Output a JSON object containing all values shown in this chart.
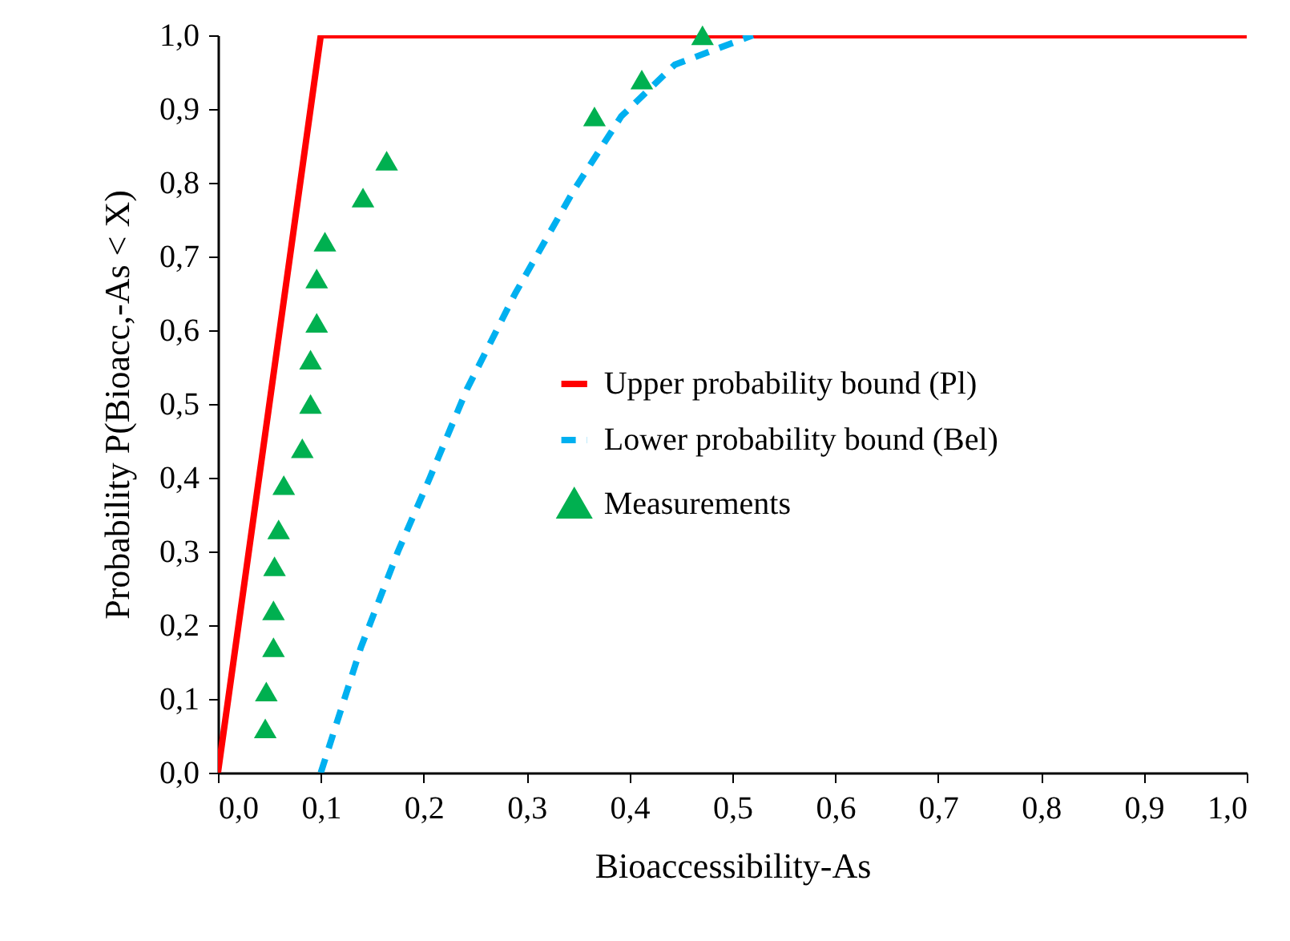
{
  "chart_data": {
    "type": "line",
    "xlabel": "Bioaccessibility-As",
    "ylabel": "Probability P(Bioacc,-As < X)",
    "xlim": [
      0,
      1
    ],
    "ylim": [
      0,
      1
    ],
    "xticks": [
      {
        "value": 0,
        "label": "0,0"
      },
      {
        "value": 0.1,
        "label": "0,1"
      },
      {
        "value": 0.2,
        "label": "0,2"
      },
      {
        "value": 0.3,
        "label": "0,3"
      },
      {
        "value": 0.4,
        "label": "0,4"
      },
      {
        "value": 0.5,
        "label": "0,5"
      },
      {
        "value": 0.6,
        "label": "0,6"
      },
      {
        "value": 0.7,
        "label": "0,7"
      },
      {
        "value": 0.8,
        "label": "0,8"
      },
      {
        "value": 0.9,
        "label": "0,9"
      },
      {
        "value": 1,
        "label": "1,0"
      }
    ],
    "yticks": [
      {
        "value": 0,
        "label": "0,0"
      },
      {
        "value": 0.1,
        "label": "0,1"
      },
      {
        "value": 0.2,
        "label": "0,2"
      },
      {
        "value": 0.3,
        "label": "0,3"
      },
      {
        "value": 0.4,
        "label": "0,4"
      },
      {
        "value": 0.5,
        "label": "0,5"
      },
      {
        "value": 0.6,
        "label": "0,6"
      },
      {
        "value": 0.7,
        "label": "0,7"
      },
      {
        "value": 0.8,
        "label": "0,8"
      },
      {
        "value": 0.9,
        "label": "0,9"
      },
      {
        "value": 1,
        "label": "1,0"
      }
    ],
    "grid": false,
    "legend": "right",
    "series": [
      {
        "name": "Upper probability bound (Pl)",
        "color": "#ff0000",
        "line_style": "solid",
        "x": [
          0,
          0.1,
          1
        ],
        "values": [
          0,
          1,
          1
        ]
      },
      {
        "name": "Lower probability bound (Bel)",
        "color": "#00b0f0",
        "line_style": "dashed",
        "x": [
          0.1,
          0.139,
          0.175,
          0.206,
          0.242,
          0.289,
          0.346,
          0.392,
          0.444,
          0.52
        ],
        "values": [
          0,
          0.17,
          0.3,
          0.4,
          0.52,
          0.65,
          0.79,
          0.89,
          0.96,
          1
        ]
      },
      {
        "name": "Measurements",
        "type": "scatter",
        "color": "#00b050",
        "marker": "triangle",
        "x": [
          0.046,
          0.047,
          0.054,
          0.054,
          0.055,
          0.059,
          0.064,
          0.082,
          0.09,
          0.09,
          0.096,
          0.096,
          0.104,
          0.141,
          0.164,
          0.366,
          0.412,
          0.471
        ],
        "values": [
          0.06,
          0.11,
          0.17,
          0.22,
          0.28,
          0.33,
          0.39,
          0.44,
          0.5,
          0.56,
          0.61,
          0.67,
          0.72,
          0.78,
          0.83,
          0.89,
          0.94,
          1
        ]
      }
    ]
  }
}
